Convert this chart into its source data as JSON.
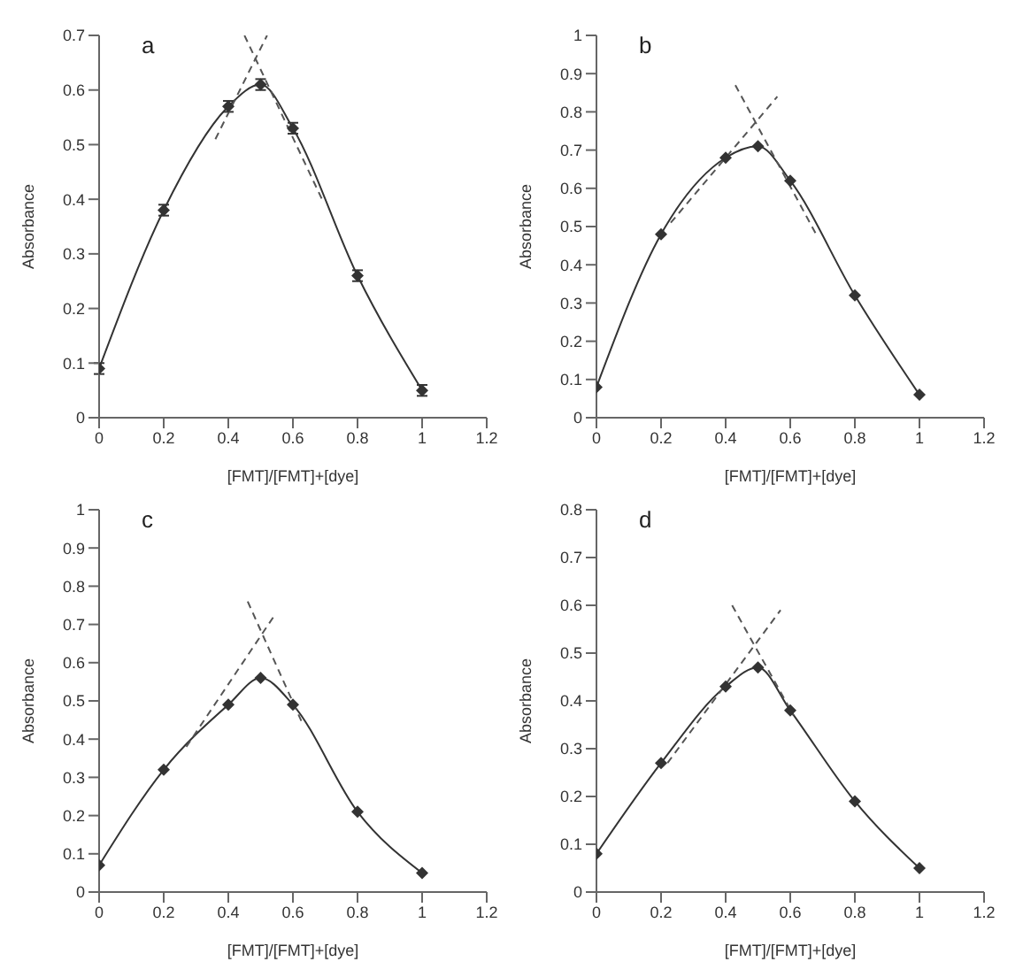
{
  "chart_data": [
    {
      "type": "line",
      "title": "a",
      "xlabel": "[FMT]/[FMT]+[dye]",
      "ylabel": "Absorbance",
      "x": [
        0,
        0.2,
        0.4,
        0.5,
        0.6,
        0.8,
        1
      ],
      "xlim": [
        0,
        1.2
      ],
      "xticks": [
        0,
        0.2,
        0.4,
        0.6,
        0.8,
        1,
        1.2
      ],
      "ylim": [
        0,
        0.7
      ],
      "yticks": [
        0,
        0.1,
        0.2,
        0.3,
        0.4,
        0.5,
        0.6,
        0.7
      ],
      "marker": "diamond",
      "line_style": "solid",
      "series": [
        {
          "color": "#333333",
          "values": [
            0.09,
            0.38,
            0.57,
            0.61,
            0.53,
            0.26,
            0.05
          ],
          "errors": [
            0.01,
            0.01,
            0.01,
            0.01,
            0.01,
            0.01,
            0.01
          ]
        },
        {
          "type": "line",
          "color": "#555555",
          "x": [
            0.36,
            0.52
          ],
          "values": [
            0.51,
            0.7
          ],
          "line_style": "dashed",
          "marker": "none"
        },
        {
          "type": "line",
          "color": "#555555",
          "x": [
            0.45,
            0.69
          ],
          "values": [
            0.7,
            0.4
          ],
          "line_style": "dashed",
          "marker": "none"
        }
      ]
    },
    {
      "type": "line",
      "title": "b",
      "xlabel": "[FMT]/[FMT]+[dye]",
      "ylabel": "Absorbance",
      "x": [
        0,
        0.2,
        0.4,
        0.5,
        0.6,
        0.8,
        1
      ],
      "xlim": [
        0,
        1.2
      ],
      "xticks": [
        0,
        0.2,
        0.4,
        0.6,
        0.8,
        1,
        1.2
      ],
      "ylim": [
        0,
        1
      ],
      "yticks": [
        0,
        0.1,
        0.2,
        0.3,
        0.4,
        0.5,
        0.6,
        0.7,
        0.8,
        0.9,
        1
      ],
      "marker": "diamond",
      "line_style": "solid",
      "series": [
        {
          "color": "#333333",
          "values": [
            0.08,
            0.48,
            0.68,
            0.71,
            0.62,
            0.32,
            0.06
          ]
        },
        {
          "type": "line",
          "color": "#555555",
          "x": [
            0.23,
            0.56
          ],
          "values": [
            0.51,
            0.84
          ],
          "line_style": "dashed",
          "marker": "none"
        },
        {
          "type": "line",
          "color": "#555555",
          "x": [
            0.43,
            0.68
          ],
          "values": [
            0.87,
            0.48
          ],
          "line_style": "dashed",
          "marker": "none"
        }
      ]
    },
    {
      "type": "line",
      "title": "c",
      "xlabel": "[FMT]/[FMT]+[dye]",
      "ylabel": "Absorbance",
      "x": [
        0,
        0.2,
        0.4,
        0.5,
        0.6,
        0.8,
        1
      ],
      "xlim": [
        0,
        1.2
      ],
      "xticks": [
        0,
        0.2,
        0.4,
        0.6,
        0.8,
        1,
        1.2
      ],
      "ylim": [
        0,
        1
      ],
      "yticks": [
        0,
        0.1,
        0.2,
        0.3,
        0.4,
        0.5,
        0.6,
        0.7,
        0.8,
        0.9,
        1
      ],
      "marker": "diamond",
      "line_style": "solid",
      "series": [
        {
          "color": "#333333",
          "values": [
            0.07,
            0.32,
            0.49,
            0.56,
            0.49,
            0.21,
            0.05
          ]
        },
        {
          "type": "line",
          "color": "#555555",
          "x": [
            0.27,
            0.54
          ],
          "values": [
            0.38,
            0.72
          ],
          "line_style": "dashed",
          "marker": "none"
        },
        {
          "type": "line",
          "color": "#555555",
          "x": [
            0.46,
            0.63
          ],
          "values": [
            0.76,
            0.44
          ],
          "line_style": "dashed",
          "marker": "none"
        }
      ]
    },
    {
      "type": "line",
      "title": "d",
      "xlabel": "[FMT]/[FMT]+[dye]",
      "ylabel": "Absorbance",
      "x": [
        0,
        0.2,
        0.4,
        0.5,
        0.6,
        0.8,
        1
      ],
      "xlim": [
        0,
        1.2
      ],
      "xticks": [
        0,
        0.2,
        0.4,
        0.6,
        0.8,
        1,
        1.2
      ],
      "ylim": [
        0,
        0.8
      ],
      "yticks": [
        0,
        0.1,
        0.2,
        0.3,
        0.4,
        0.5,
        0.6,
        0.7,
        0.8
      ],
      "marker": "diamond",
      "line_style": "solid",
      "series": [
        {
          "color": "#333333",
          "values": [
            0.08,
            0.27,
            0.43,
            0.47,
            0.38,
            0.19,
            0.05
          ]
        },
        {
          "type": "line",
          "color": "#555555",
          "x": [
            0.22,
            0.57
          ],
          "values": [
            0.27,
            0.59
          ],
          "line_style": "dashed",
          "marker": "none"
        },
        {
          "type": "line",
          "color": "#555555",
          "x": [
            0.42,
            0.61
          ],
          "values": [
            0.6,
            0.37
          ],
          "line_style": "dashed",
          "marker": "none"
        }
      ]
    }
  ]
}
